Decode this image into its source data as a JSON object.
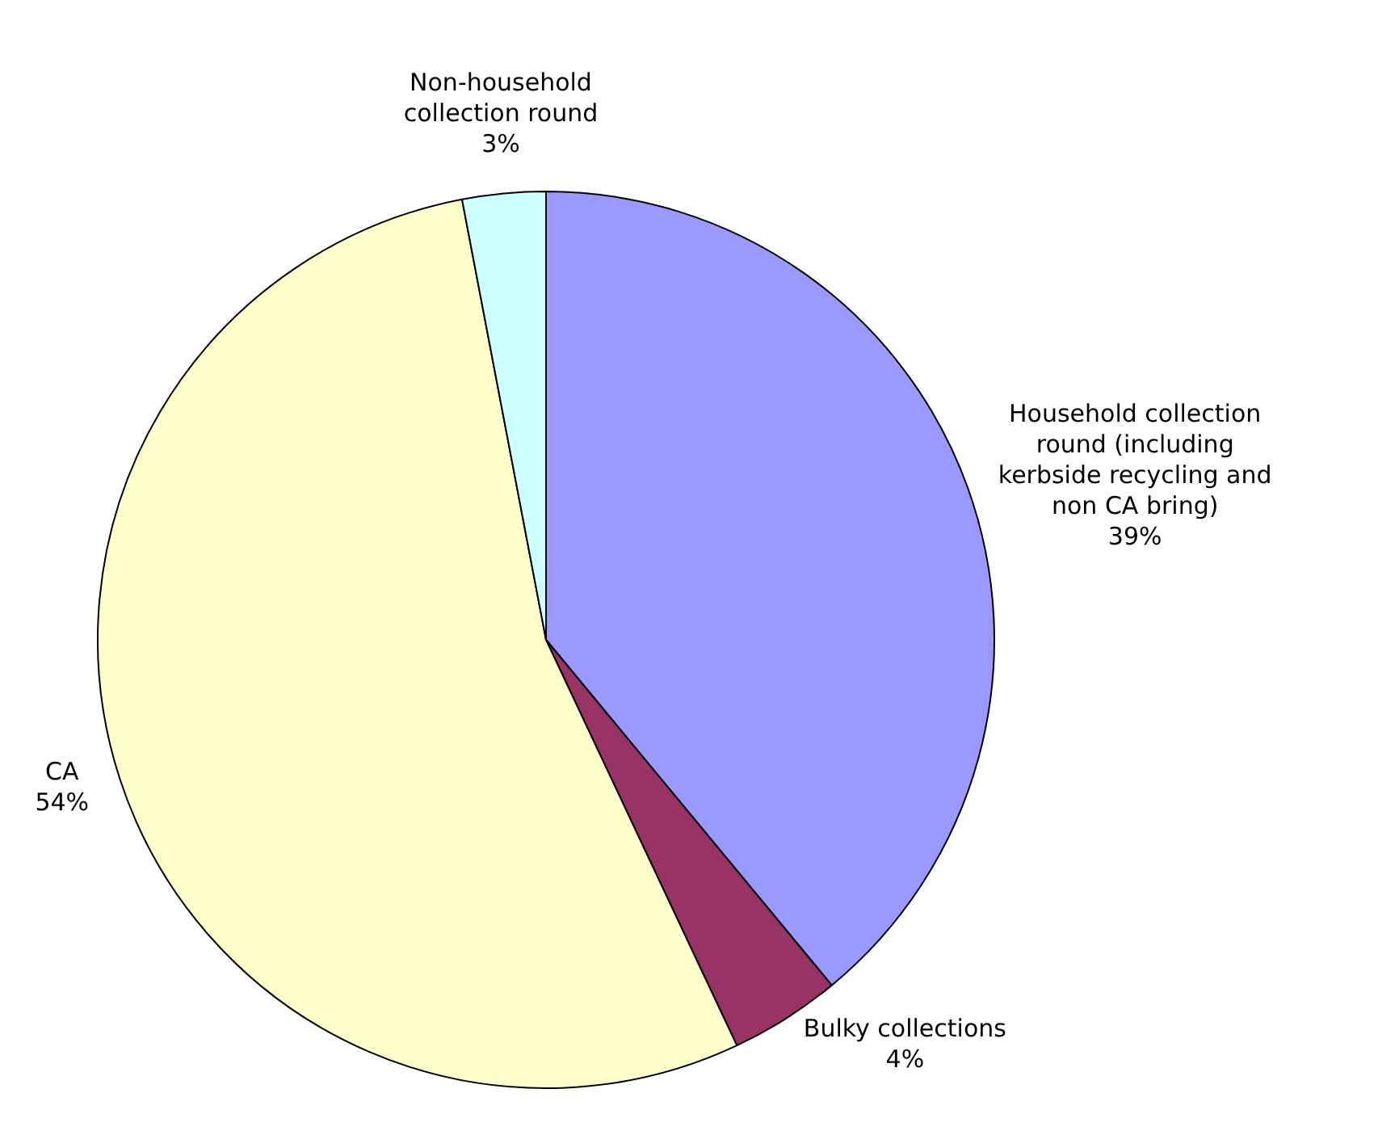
{
  "chart_data": {
    "type": "pie",
    "categories": [
      "Household collection\nround (including\nkerbside recycling and\nnon CA bring)",
      "Bulky collections",
      "CA",
      "Non-household\ncollection round"
    ],
    "values": [
      39,
      4,
      54,
      3
    ],
    "colors": [
      "#9999ff",
      "#993366",
      "#ffffcc",
      "#ccffff"
    ],
    "value_labels": [
      "39%",
      "4%",
      "54%",
      "3%"
    ],
    "legend": false
  }
}
